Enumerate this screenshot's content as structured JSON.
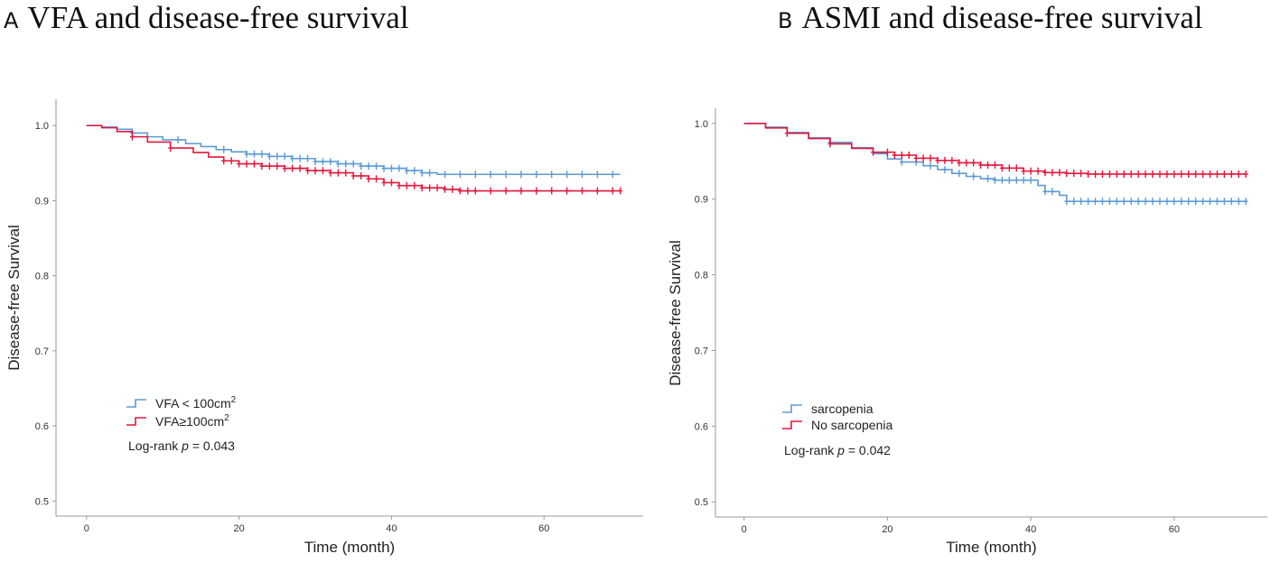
{
  "titles": [
    {
      "letter": "A",
      "text": "VFA and disease-free survival"
    },
    {
      "letter": "B",
      "text": "ASMI and disease-free survival"
    }
  ],
  "colors": {
    "series1": "#5b9bd5",
    "series2": "#e3173c",
    "axis": "#999999"
  },
  "chart_data": [
    {
      "type": "line",
      "subtype": "kaplan-meier",
      "title": "VFA and disease-free survival",
      "xlabel": "Time (month)",
      "ylabel": "Disease-free Survival",
      "xlim": [
        -4,
        73
      ],
      "ylim": [
        0.48,
        1.035
      ],
      "xticks": [
        0,
        20,
        40,
        60
      ],
      "yticks": [
        0.5,
        0.6,
        0.7,
        0.8,
        0.9,
        1.0
      ],
      "ytick_labels": [
        "0.5",
        "0.6",
        "0.7",
        "0.8",
        "0.9",
        "1.0"
      ],
      "legend_position": "lower-left",
      "annotation": {
        "prefix": "Log-rank ",
        "p": "p",
        "suffix": " = 0.043"
      },
      "series": [
        {
          "name": "VFA < 100cm",
          "sup": "2",
          "color": "#5b9bd5",
          "steps": [
            [
              0,
              1.0
            ],
            [
              2,
              0.998
            ],
            [
              4,
              0.995
            ],
            [
              6,
              0.99
            ],
            [
              8,
              0.985
            ],
            [
              10,
              0.981
            ],
            [
              13,
              0.976
            ],
            [
              15,
              0.972
            ],
            [
              17,
              0.968
            ],
            [
              19,
              0.965
            ],
            [
              21,
              0.962
            ],
            [
              24,
              0.959
            ],
            [
              27,
              0.956
            ],
            [
              30,
              0.952
            ],
            [
              33,
              0.949
            ],
            [
              36,
              0.946
            ],
            [
              39,
              0.943
            ],
            [
              42,
              0.94
            ],
            [
              44,
              0.937
            ],
            [
              46,
              0.935
            ],
            [
              70,
              0.935
            ]
          ],
          "censors": [
            6,
            12,
            18,
            21,
            22,
            23,
            24,
            25,
            26,
            27,
            28,
            29,
            30,
            31,
            32,
            33,
            34,
            35,
            36,
            37,
            38,
            39,
            40,
            41,
            42,
            43,
            44,
            45,
            47,
            49,
            51,
            53,
            55,
            57,
            59,
            61,
            63,
            65,
            67,
            69
          ]
        },
        {
          "name": "VFA≥100cm",
          "sup": "2",
          "color": "#e3173c",
          "steps": [
            [
              0,
              1.0
            ],
            [
              2,
              0.997
            ],
            [
              4,
              0.992
            ],
            [
              6,
              0.985
            ],
            [
              8,
              0.978
            ],
            [
              11,
              0.97
            ],
            [
              14,
              0.964
            ],
            [
              16,
              0.958
            ],
            [
              18,
              0.953
            ],
            [
              20,
              0.949
            ],
            [
              23,
              0.946
            ],
            [
              26,
              0.943
            ],
            [
              29,
              0.94
            ],
            [
              32,
              0.937
            ],
            [
              35,
              0.933
            ],
            [
              37,
              0.929
            ],
            [
              39,
              0.924
            ],
            [
              41,
              0.92
            ],
            [
              44,
              0.917
            ],
            [
              47,
              0.915
            ],
            [
              49,
              0.913
            ],
            [
              70,
              0.913
            ]
          ],
          "censors": [
            6,
            11,
            18,
            19,
            20,
            21,
            22,
            23,
            24,
            25,
            26,
            27,
            28,
            29,
            30,
            31,
            32,
            33,
            34,
            35,
            36,
            37,
            38,
            39,
            40,
            41,
            42,
            43,
            44,
            45,
            46,
            47,
            48,
            49,
            50,
            51,
            53,
            55,
            57,
            59,
            61,
            63,
            65,
            67,
            69,
            70
          ]
        }
      ]
    },
    {
      "type": "line",
      "subtype": "kaplan-meier",
      "title": "ASMI and disease-free survival",
      "xlabel": "Time (month)",
      "ylabel": "Disease-free Survival",
      "xlim": [
        -4,
        73
      ],
      "ylim": [
        0.48,
        1.02
      ],
      "xticks": [
        0,
        20,
        40,
        60
      ],
      "yticks": [
        0.5,
        0.6,
        0.7,
        0.8,
        0.9,
        1.0
      ],
      "ytick_labels": [
        "0.5",
        "0.6",
        "0.7",
        "0.8",
        "0.9",
        "1.0"
      ],
      "legend_position": "lower-left",
      "annotation": {
        "prefix": "Log-rank ",
        "p": "p",
        "suffix": " = 0.042"
      },
      "series": [
        {
          "name": "sarcopenia",
          "sup": "",
          "color": "#5b9bd5",
          "steps": [
            [
              0,
              1.0
            ],
            [
              3,
              0.995
            ],
            [
              6,
              0.988
            ],
            [
              9,
              0.981
            ],
            [
              12,
              0.975
            ],
            [
              15,
              0.968
            ],
            [
              18,
              0.96
            ],
            [
              20,
              0.953
            ],
            [
              22,
              0.949
            ],
            [
              25,
              0.944
            ],
            [
              27,
              0.939
            ],
            [
              29,
              0.934
            ],
            [
              31,
              0.93
            ],
            [
              33,
              0.927
            ],
            [
              35,
              0.925
            ],
            [
              41,
              0.918
            ],
            [
              42,
              0.91
            ],
            [
              44,
              0.905
            ],
            [
              45,
              0.897
            ],
            [
              70,
              0.897
            ]
          ],
          "censors": [
            12,
            22,
            24,
            26,
            28,
            30,
            32,
            34,
            35,
            36,
            37,
            38,
            39,
            40,
            42,
            43,
            45,
            46,
            47,
            48,
            49,
            50,
            51,
            52,
            53,
            54,
            55,
            56,
            57,
            58,
            59,
            60,
            61,
            62,
            63,
            64,
            65,
            66,
            67,
            68,
            69,
            70
          ]
        },
        {
          "name": "No sarcopenia",
          "sup": "",
          "color": "#e3173c",
          "steps": [
            [
              0,
              1.0
            ],
            [
              3,
              0.994
            ],
            [
              6,
              0.987
            ],
            [
              9,
              0.98
            ],
            [
              12,
              0.973
            ],
            [
              15,
              0.967
            ],
            [
              18,
              0.962
            ],
            [
              21,
              0.958
            ],
            [
              24,
              0.954
            ],
            [
              27,
              0.951
            ],
            [
              30,
              0.948
            ],
            [
              33,
              0.945
            ],
            [
              36,
              0.941
            ],
            [
              39,
              0.937
            ],
            [
              42,
              0.935
            ],
            [
              45,
              0.934
            ],
            [
              48,
              0.933
            ],
            [
              70,
              0.933
            ]
          ],
          "censors": [
            6,
            12,
            18,
            20,
            21,
            22,
            23,
            24,
            25,
            26,
            27,
            28,
            29,
            30,
            31,
            32,
            33,
            34,
            35,
            36,
            37,
            38,
            39,
            40,
            41,
            42,
            43,
            44,
            45,
            46,
            47,
            48,
            49,
            50,
            51,
            52,
            53,
            54,
            55,
            56,
            57,
            58,
            59,
            60,
            61,
            62,
            63,
            64,
            65,
            66,
            67,
            68,
            69,
            70
          ]
        }
      ]
    }
  ]
}
